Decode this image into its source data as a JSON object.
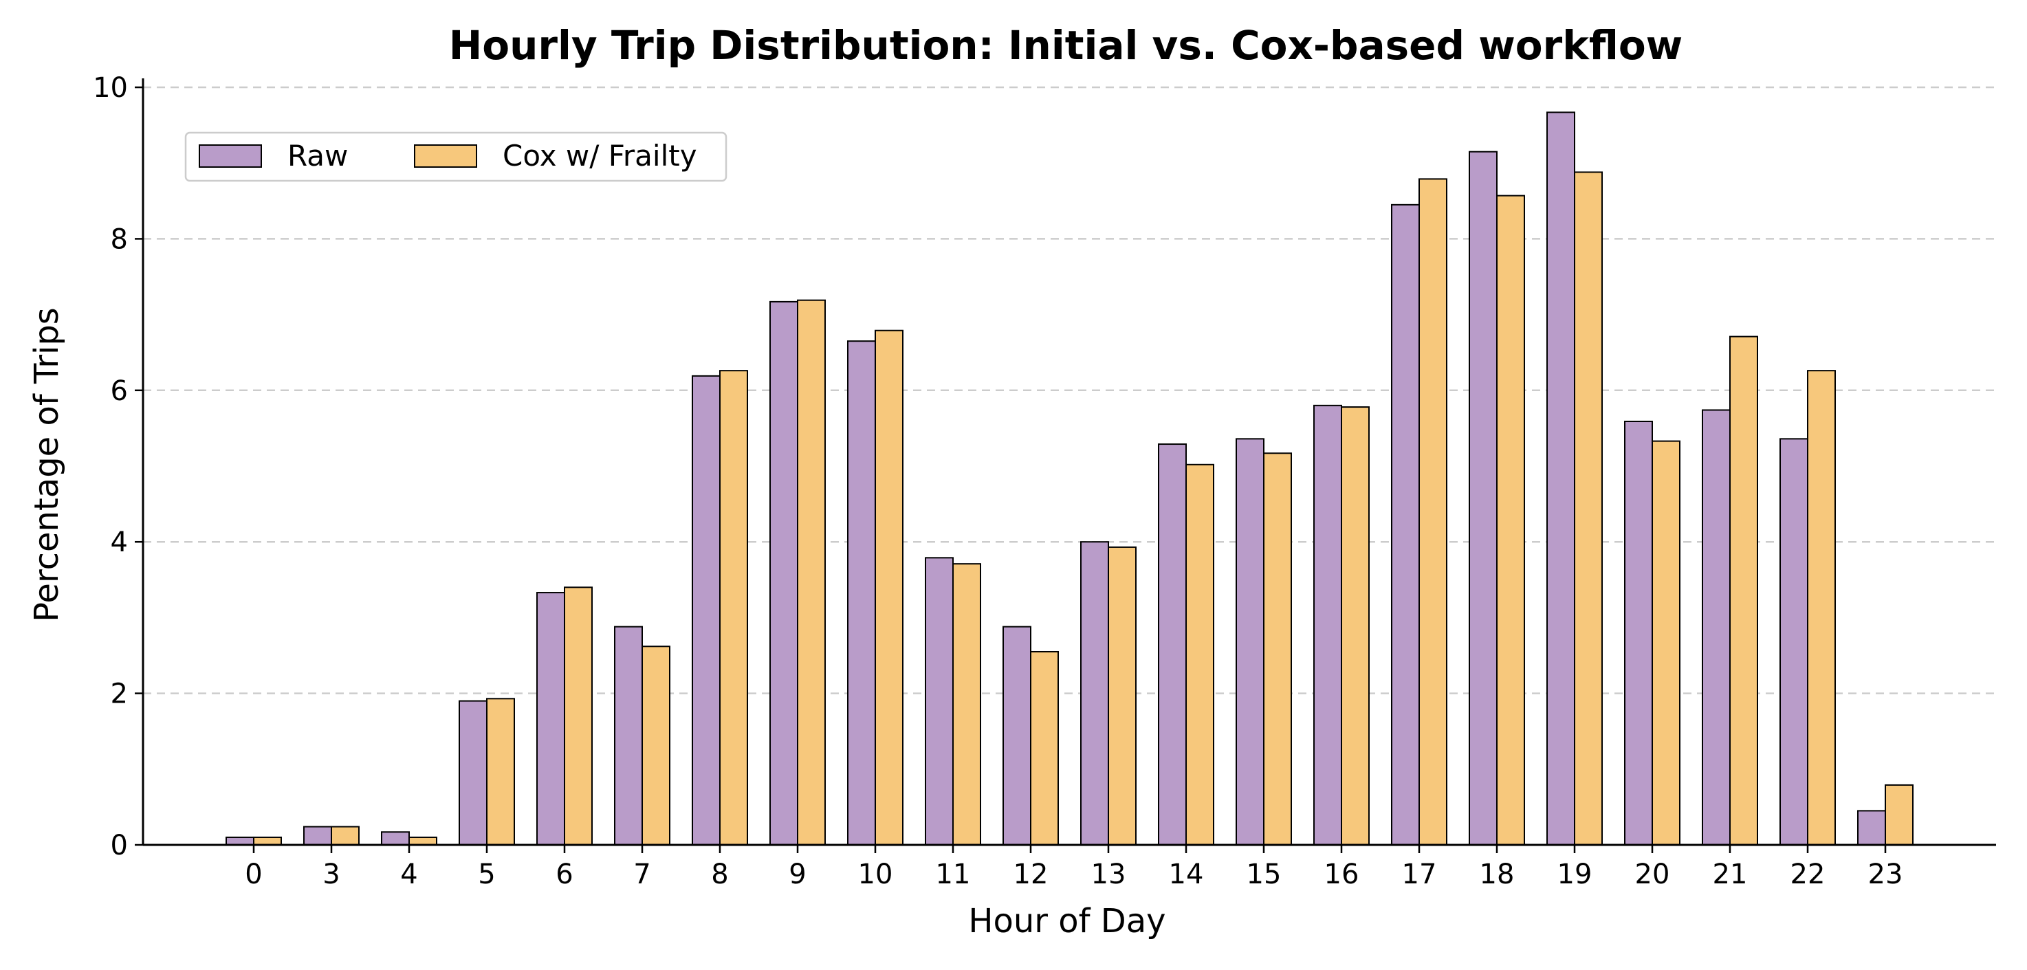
{
  "chart_data": {
    "type": "bar",
    "title": "Hourly Trip Distribution: Initial vs. Cox-based workflow",
    "xlabel": "Hour of Day",
    "ylabel": "Percentage of Trips",
    "categories": [
      "0",
      "3",
      "4",
      "5",
      "6",
      "7",
      "8",
      "9",
      "10",
      "11",
      "12",
      "13",
      "14",
      "15",
      "16",
      "17",
      "18",
      "19",
      "20",
      "21",
      "22",
      "23"
    ],
    "series": [
      {
        "name": "Raw",
        "color": "#b99cc9",
        "values": [
          0.1,
          0.24,
          0.17,
          1.9,
          3.33,
          2.88,
          6.19,
          7.17,
          6.65,
          3.79,
          2.88,
          4.0,
          5.29,
          5.36,
          5.8,
          8.45,
          9.15,
          9.67,
          5.59,
          5.74,
          5.36,
          0.45
        ]
      },
      {
        "name": "Cox w/ Frailty",
        "color": "#f7c87c",
        "values": [
          0.1,
          0.24,
          0.1,
          1.93,
          3.4,
          2.62,
          6.26,
          7.19,
          6.79,
          3.71,
          2.55,
          3.93,
          5.02,
          5.17,
          5.78,
          8.79,
          8.57,
          8.88,
          5.33,
          6.71,
          6.26,
          0.79
        ]
      }
    ],
    "ylim": [
      0,
      10.1
    ],
    "yticks": [
      0,
      2,
      4,
      6,
      8,
      10
    ],
    "grid": "y-dashed",
    "legend_position": "top-left",
    "bar_edge_color": "#000000",
    "grid_color": "#cccccc"
  }
}
